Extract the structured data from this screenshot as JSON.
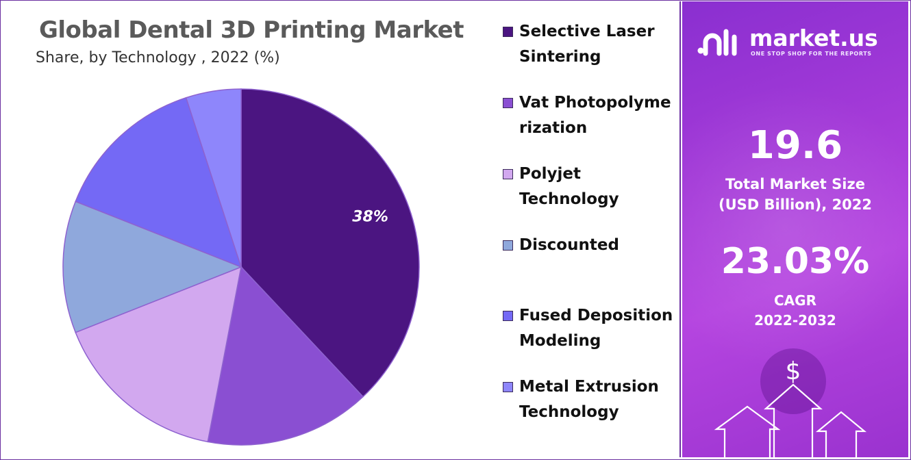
{
  "chart_data": {
    "type": "pie",
    "title": "Global Dental 3D Printing Market",
    "subtitle": "Share, by Technology , 2022 (%)",
    "categories": [
      "Selective Laser Sintering",
      "Vat Photopolymerization",
      "Polyjet Technology",
      "Discounted",
      "Fused Deposition Modeling",
      "Metal Extrusion Technology"
    ],
    "values": [
      38,
      15,
      16,
      12,
      14,
      5
    ],
    "colors": [
      "#4b1581",
      "#8a4fd2",
      "#d2a8ef",
      "#8fa8dc",
      "#7469f5",
      "#8e86fb"
    ],
    "data_labels": [
      "38%",
      "",
      "",
      "",
      "",
      ""
    ],
    "legend_position": "right"
  },
  "sidebar": {
    "brand": "market.us",
    "tagline": "ONE STOP SHOP FOR THE REPORTS",
    "market_size_value": "19.6",
    "market_size_label_line1": "Total Market Size",
    "market_size_label_line2": "(USD Billion), 2022",
    "cagr_value": "23.03%",
    "cagr_label_line1": "CAGR",
    "cagr_label_line2": "2022-2032",
    "currency_symbol": "$"
  }
}
